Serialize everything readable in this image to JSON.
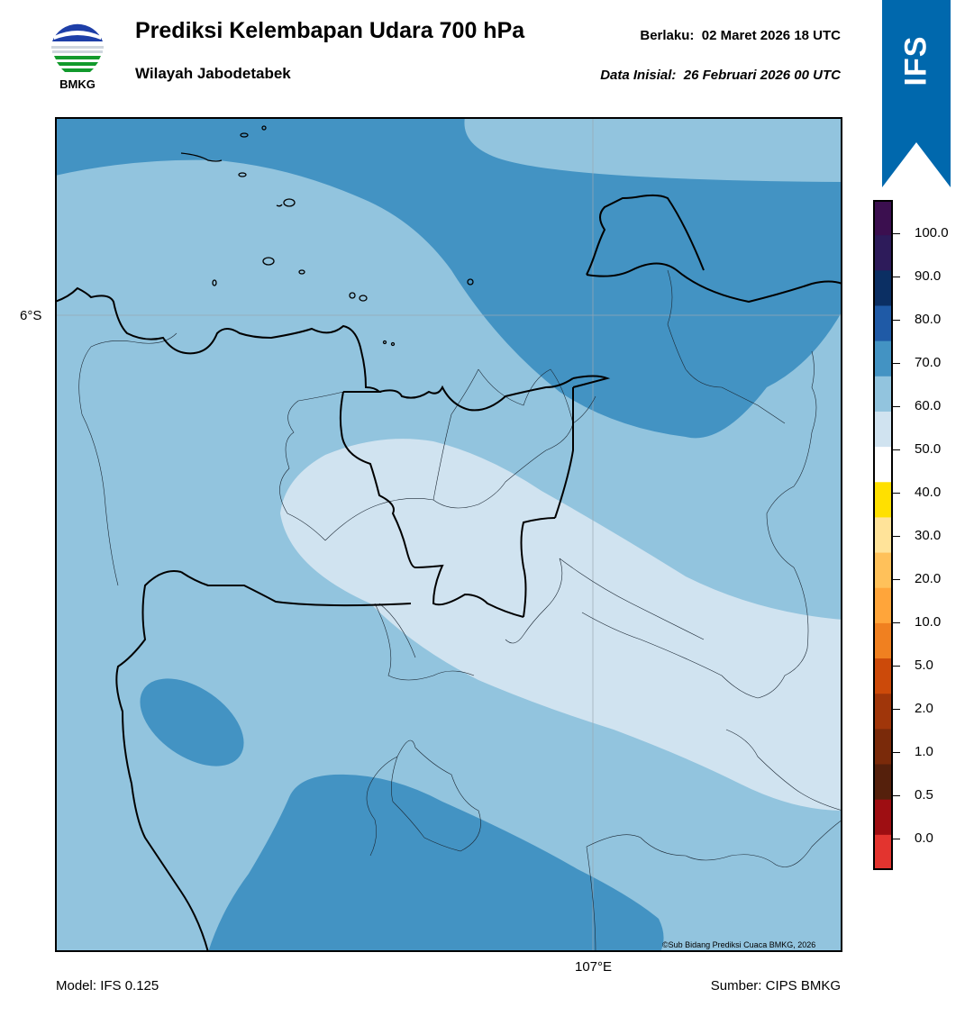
{
  "header": {
    "logo_text": "BMKG",
    "title": "Prediksi Kelembapan Udara 700 hPa",
    "subtitle": "Wilayah Jabodetabek",
    "valid_label": "Berlaku:",
    "valid_time": "02 Maret 2026 18 UTC",
    "init_label": "Data Inisial:",
    "init_time": "26 Februari 2026 00 UTC"
  },
  "ribbon": {
    "text": "IFS",
    "color": "#0068ad"
  },
  "map": {
    "lat_label": "6°S",
    "lon_label": "107°E",
    "copyright": "©Sub Bidang Prediksi Cuaca BMKG, 2026",
    "fill_colors": {
      "50-60": "#d0e3f0",
      "60-70": "#92c4de",
      "70-80": "#4393c3",
      "80-90": "#2166ac"
    }
  },
  "colorbar": {
    "labels": [
      "100.0",
      "90.0",
      "80.0",
      "70.0",
      "60.0",
      "50.0",
      "40.0",
      "30.0",
      "20.0",
      "10.0",
      "5.0",
      "2.0",
      "1.0",
      "0.5",
      "0.0"
    ],
    "colors": [
      "#3b0f4f",
      "#2d1b5a",
      "#0b2f63",
      "#1f5aa6",
      "#4393c3",
      "#92c4de",
      "#d0e3f0",
      "#ffffff",
      "#ffe000",
      "#ffe399",
      "#ffc15a",
      "#ffa53a",
      "#f08020",
      "#cc4a0a",
      "#a0360a",
      "#7a2a0a",
      "#55200c",
      "#9e0e12",
      "#e3342f"
    ]
  },
  "footer": {
    "model": "Model: IFS 0.125",
    "source": "Sumber: CIPS BMKG"
  }
}
